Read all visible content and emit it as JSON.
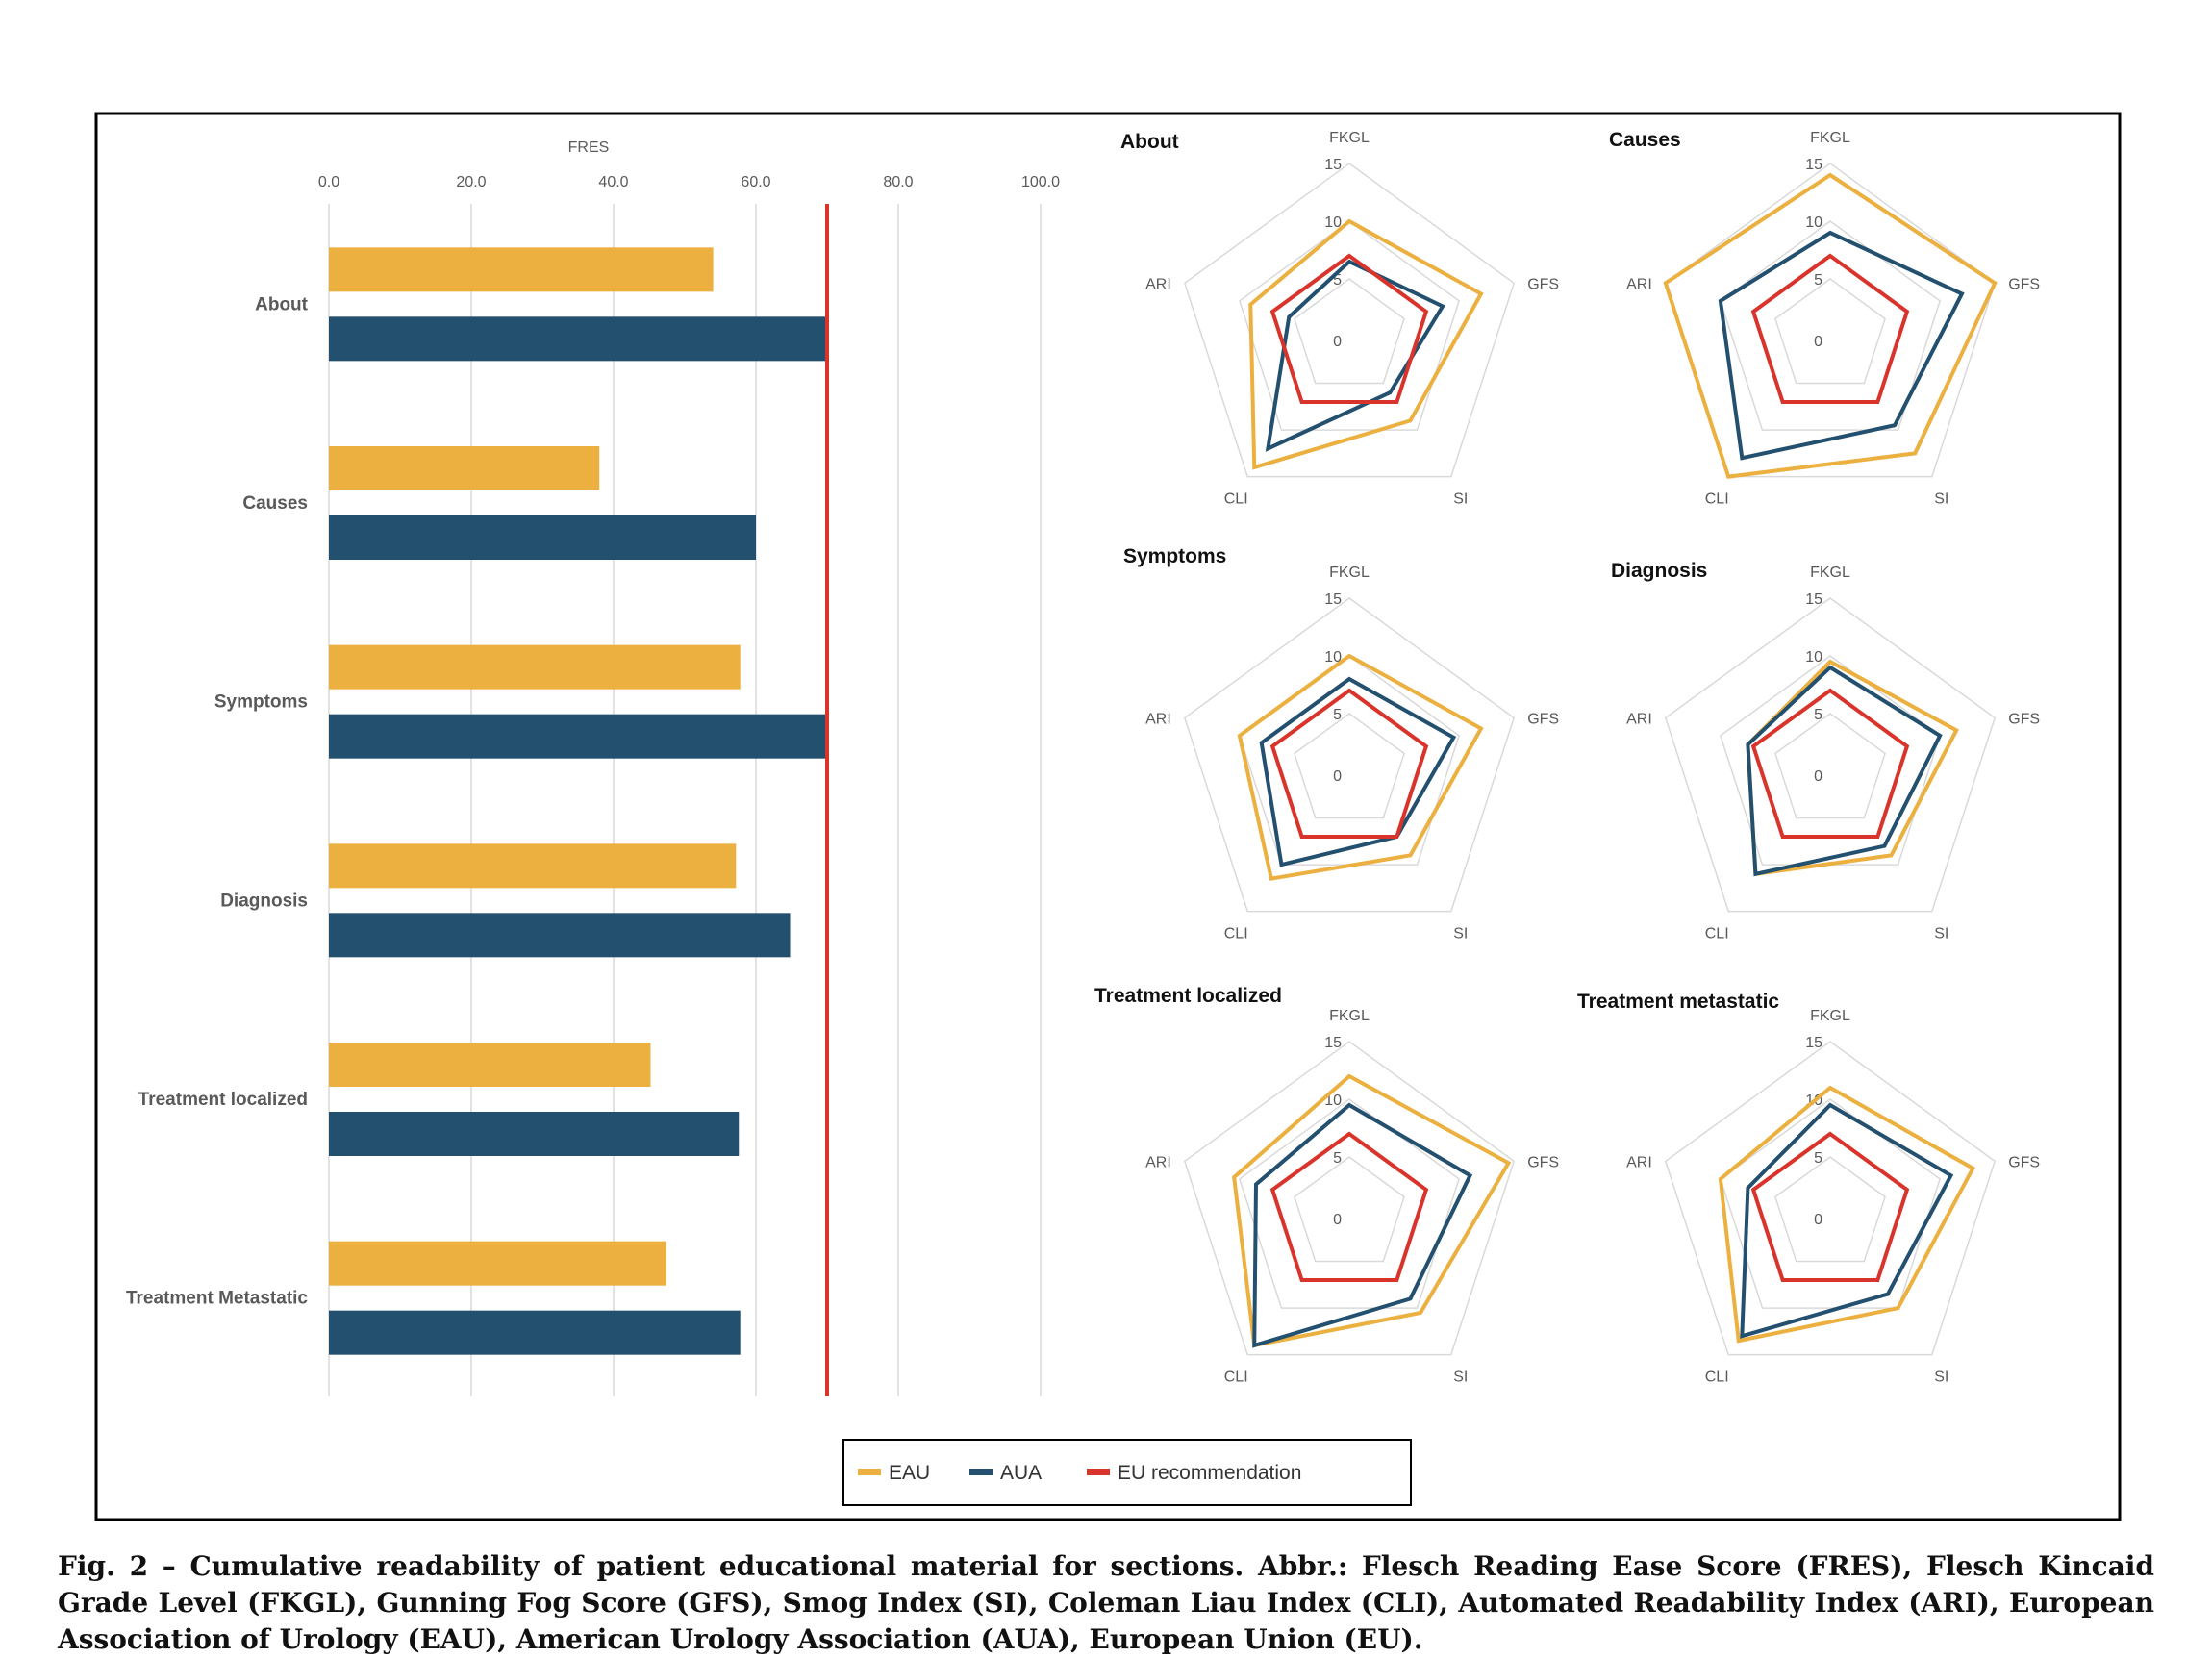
{
  "colors": {
    "eau": "#ebb03f",
    "aua": "#23506f",
    "eu": "#d9342b",
    "grid": "#d9d9d9",
    "text": "#595959",
    "frame": "#000000"
  },
  "caption": "Fig. 2 – Cumulative readability of patient educational material for sections. Abbr.: Flesch Reading Ease Score (FRES), Flesch Kincaid Grade Level (FKGL), Gunning Fog Score (GFS), Smog Index (SI), Coleman Liau Index (CLI), Automated Readability Index (ARI), European Association of Urology (EAU), American Urology Association (AUA), European Union (EU).",
  "legend": [
    "EAU",
    "AUA",
    "EU recommendation"
  ],
  "chart_data": [
    {
      "type": "bar",
      "orientation": "horizontal",
      "xlabel": "FRES",
      "xlim": [
        0,
        100
      ],
      "xticks": [
        "0.0",
        "20.0",
        "40.0",
        "60.0",
        "80.0",
        "100.0"
      ],
      "categories": [
        "About",
        "Causes",
        "Symptoms",
        "Diagnosis",
        "Treatment localized",
        "Treatment Metastatic"
      ],
      "series": [
        {
          "name": "EAU",
          "values": [
            54.0,
            38.0,
            57.8,
            57.2,
            45.2,
            47.4
          ]
        },
        {
          "name": "AUA",
          "values": [
            70.0,
            60.0,
            69.8,
            64.8,
            57.6,
            57.8
          ]
        }
      ],
      "reference_line": {
        "name": "EU recommendation",
        "value": 70
      },
      "grid": true
    },
    {
      "type": "radar",
      "title": "About",
      "axes": [
        "FKGL",
        "GFS",
        "SI",
        "CLI",
        "ARI"
      ],
      "rlim": [
        0,
        15
      ],
      "rticks": [
        "0",
        "5",
        "10",
        "15"
      ],
      "series": [
        {
          "name": "EAU",
          "values": [
            10.0,
            12.0,
            9.0,
            14.0,
            9.0
          ]
        },
        {
          "name": "AUA",
          "values": [
            6.5,
            8.5,
            6.0,
            12.0,
            5.5
          ]
        },
        {
          "name": "EU recommendation",
          "values": [
            7.0,
            7.0,
            7.0,
            7.0,
            7.0
          ]
        }
      ]
    },
    {
      "type": "radar",
      "title": "Causes",
      "axes": [
        "FKGL",
        "GFS",
        "SI",
        "CLI",
        "ARI"
      ],
      "rlim": [
        0,
        15
      ],
      "rticks": [
        "0",
        "5",
        "10",
        "15"
      ],
      "series": [
        {
          "name": "EAU",
          "values": [
            14.0,
            15.0,
            12.5,
            15.0,
            15.0
          ]
        },
        {
          "name": "AUA",
          "values": [
            9.0,
            12.0,
            9.5,
            13.0,
            10.0
          ]
        },
        {
          "name": "EU recommendation",
          "values": [
            7.0,
            7.0,
            7.0,
            7.0,
            7.0
          ]
        }
      ]
    },
    {
      "type": "radar",
      "title": "Symptoms",
      "axes": [
        "FKGL",
        "GFS",
        "SI",
        "CLI",
        "ARI"
      ],
      "rlim": [
        0,
        15
      ],
      "rticks": [
        "0",
        "5",
        "10",
        "15"
      ],
      "series": [
        {
          "name": "EAU",
          "values": [
            10.0,
            12.0,
            9.0,
            11.5,
            10.0
          ]
        },
        {
          "name": "AUA",
          "values": [
            8.0,
            9.5,
            7.0,
            10.0,
            8.0
          ]
        },
        {
          "name": "EU recommendation",
          "values": [
            7.0,
            7.0,
            7.0,
            7.0,
            7.0
          ]
        }
      ]
    },
    {
      "type": "radar",
      "title": "Diagnosis",
      "axes": [
        "FKGL",
        "GFS",
        "SI",
        "CLI",
        "ARI"
      ],
      "rlim": [
        0,
        15
      ],
      "rticks": [
        "0",
        "5",
        "10",
        "15"
      ],
      "series": [
        {
          "name": "EAU",
          "values": [
            9.5,
            11.5,
            9.0,
            11.0,
            7.5
          ]
        },
        {
          "name": "AUA",
          "values": [
            9.0,
            10.0,
            8.0,
            11.0,
            7.5
          ]
        },
        {
          "name": "EU recommendation",
          "values": [
            7.0,
            7.0,
            7.0,
            7.0,
            7.0
          ]
        }
      ]
    },
    {
      "type": "radar",
      "title": "Treatment localized",
      "axes": [
        "FKGL",
        "GFS",
        "SI",
        "CLI",
        "ARI"
      ],
      "rlim": [
        0,
        15
      ],
      "rticks": [
        "0",
        "5",
        "10",
        "15"
      ],
      "series": [
        {
          "name": "EAU",
          "values": [
            12.0,
            14.5,
            10.5,
            14.0,
            10.5
          ]
        },
        {
          "name": "AUA",
          "values": [
            9.5,
            11.0,
            9.0,
            14.0,
            8.5
          ]
        },
        {
          "name": "EU recommendation",
          "values": [
            7.0,
            7.0,
            7.0,
            7.0,
            7.0
          ]
        }
      ]
    },
    {
      "type": "radar",
      "title": "Treatment metastatic",
      "axes": [
        "FKGL",
        "GFS",
        "SI",
        "CLI",
        "ARI"
      ],
      "rlim": [
        0,
        15
      ],
      "rticks": [
        "0",
        "5",
        "10",
        "15"
      ],
      "series": [
        {
          "name": "EAU",
          "values": [
            11.0,
            13.0,
            10.0,
            13.5,
            10.0
          ]
        },
        {
          "name": "AUA",
          "values": [
            9.5,
            11.0,
            8.5,
            13.0,
            7.5
          ]
        },
        {
          "name": "EU recommendation",
          "values": [
            7.0,
            7.0,
            7.0,
            7.0,
            7.0
          ]
        }
      ]
    }
  ]
}
